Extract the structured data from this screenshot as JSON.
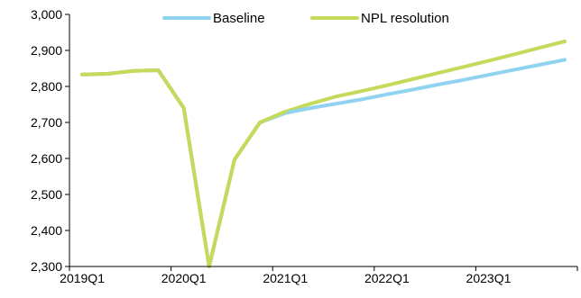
{
  "chart_data": {
    "type": "line",
    "title": "",
    "xlabel": "",
    "ylabel": "",
    "ylim": [
      2300,
      3000
    ],
    "yticks": [
      2300,
      2400,
      2500,
      2600,
      2700,
      2800,
      2900,
      3000
    ],
    "ytick_labels": [
      "2,300",
      "2,400",
      "2,500",
      "2,600",
      "2,700",
      "2,800",
      "2,900",
      "3,000"
    ],
    "x": [
      "2019Q1",
      "2019Q2",
      "2019Q3",
      "2019Q4",
      "2020Q1",
      "2020Q2",
      "2020Q3",
      "2020Q4",
      "2021Q1",
      "2021Q2",
      "2021Q3",
      "2021Q4",
      "2022Q1",
      "2022Q2",
      "2022Q3",
      "2022Q4",
      "2023Q1",
      "2023Q2",
      "2023Q3",
      "2023Q4"
    ],
    "xtick_labels": [
      "2019Q1",
      "2020Q1",
      "2021Q1",
      "2022Q1",
      "2023Q1"
    ],
    "grid": false,
    "legend_position": "top",
    "series": [
      {
        "name": "Baseline",
        "color": "#8fd3f1",
        "values": [
          2833,
          2835,
          2843,
          2845,
          2740,
          2300,
          2597,
          2700,
          2726,
          2740,
          2752,
          2764,
          2778,
          2791,
          2805,
          2818,
          2832,
          2846,
          2860,
          2874
        ]
      },
      {
        "name": "NPL resolution",
        "color": "#c5d95a",
        "values": [
          2833,
          2835,
          2843,
          2845,
          2740,
          2300,
          2597,
          2700,
          2730,
          2752,
          2772,
          2787,
          2803,
          2820,
          2837,
          2854,
          2871,
          2889,
          2907,
          2925
        ]
      }
    ]
  }
}
